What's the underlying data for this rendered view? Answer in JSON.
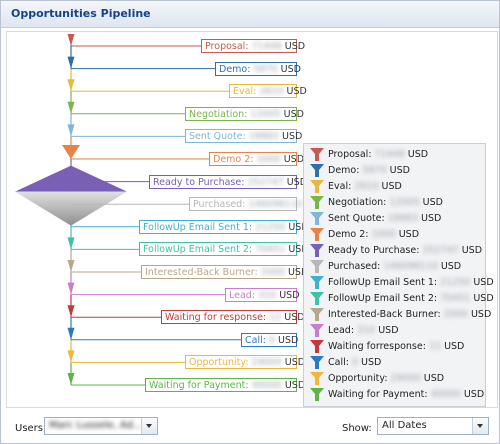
{
  "panel": {
    "title": "Opportunities Pipeline"
  },
  "stages": [
    {
      "label": "Proposal:",
      "amount": "71448",
      "currency": "USD",
      "color": "#c55a4e",
      "legend_label": "Proposal:"
    },
    {
      "label": "Demo:",
      "amount": "5870",
      "currency": "USD",
      "color": "#2f6fa8",
      "legend_label": "Demo:"
    },
    {
      "label": "Eval:",
      "amount": "2610",
      "currency": "USD",
      "color": "#e4b93c",
      "legend_label": "Eval:"
    },
    {
      "label": "Negotiation:",
      "amount": "12005",
      "currency": "USD",
      "color": "#79b54a",
      "legend_label": "Negotiation:"
    },
    {
      "label": "Sent Quote:",
      "amount": "18883",
      "currency": "USD",
      "color": "#7fb6d9",
      "legend_label": "Sent Quote:"
    },
    {
      "label": "Demo 2:",
      "amount": "1000",
      "currency": "USD",
      "color": "#e6834a",
      "legend_label": "Demo 2:"
    },
    {
      "label": "Ready to Purchase:",
      "amount": "252747",
      "currency": "USD",
      "color": "#7a5fb6",
      "legend_label": "Ready to Purchase:"
    },
    {
      "label": "Purchased:",
      "amount": "146098110",
      "currency": "USD",
      "color": "#b7b7b7",
      "legend_label": "Purchased:"
    },
    {
      "label": "FollowUp Email Sent 1:",
      "amount": "21250",
      "currency": "USD",
      "color": "#3fb0cf",
      "legend_label": "FollowUp Email Sent 1:"
    },
    {
      "label": "FollowUp Email Sent 2:",
      "amount": "70451",
      "currency": "USD",
      "color": "#3fc1a8",
      "legend_label": "FollowUp Email Sent 2:"
    },
    {
      "label": "Interested-Back Burner:",
      "amount": "2000",
      "currency": "USD",
      "color": "#b8a88a",
      "legend_label": "Interested-Back Burner:"
    },
    {
      "label": "Lead:",
      "amount": "310",
      "currency": "USD",
      "color": "#c77fd0",
      "legend_label": "Lead:"
    },
    {
      "label": "Waiting for response:",
      "amount": "12",
      "currency": "USD",
      "color": "#c33a3a",
      "legend_label": "Waiting forresponse:"
    },
    {
      "label": "Call:",
      "amount": "0",
      "currency": "USD",
      "color": "#2c7bc0",
      "legend_label": "Call:"
    },
    {
      "label": "Opportunity:",
      "amount": "29000",
      "currency": "USD",
      "color": "#f0b836",
      "legend_label": "Opportunity:"
    },
    {
      "label": "Waiting for Payment:",
      "amount": "40000",
      "currency": "USD",
      "color": "#5fb449",
      "legend_label": "Waiting for Payment:"
    }
  ],
  "footer": {
    "users_label": "Users:",
    "users_value": "Marc Lussele, Ad...",
    "show_label": "Show:",
    "show_value": "All Dates"
  }
}
